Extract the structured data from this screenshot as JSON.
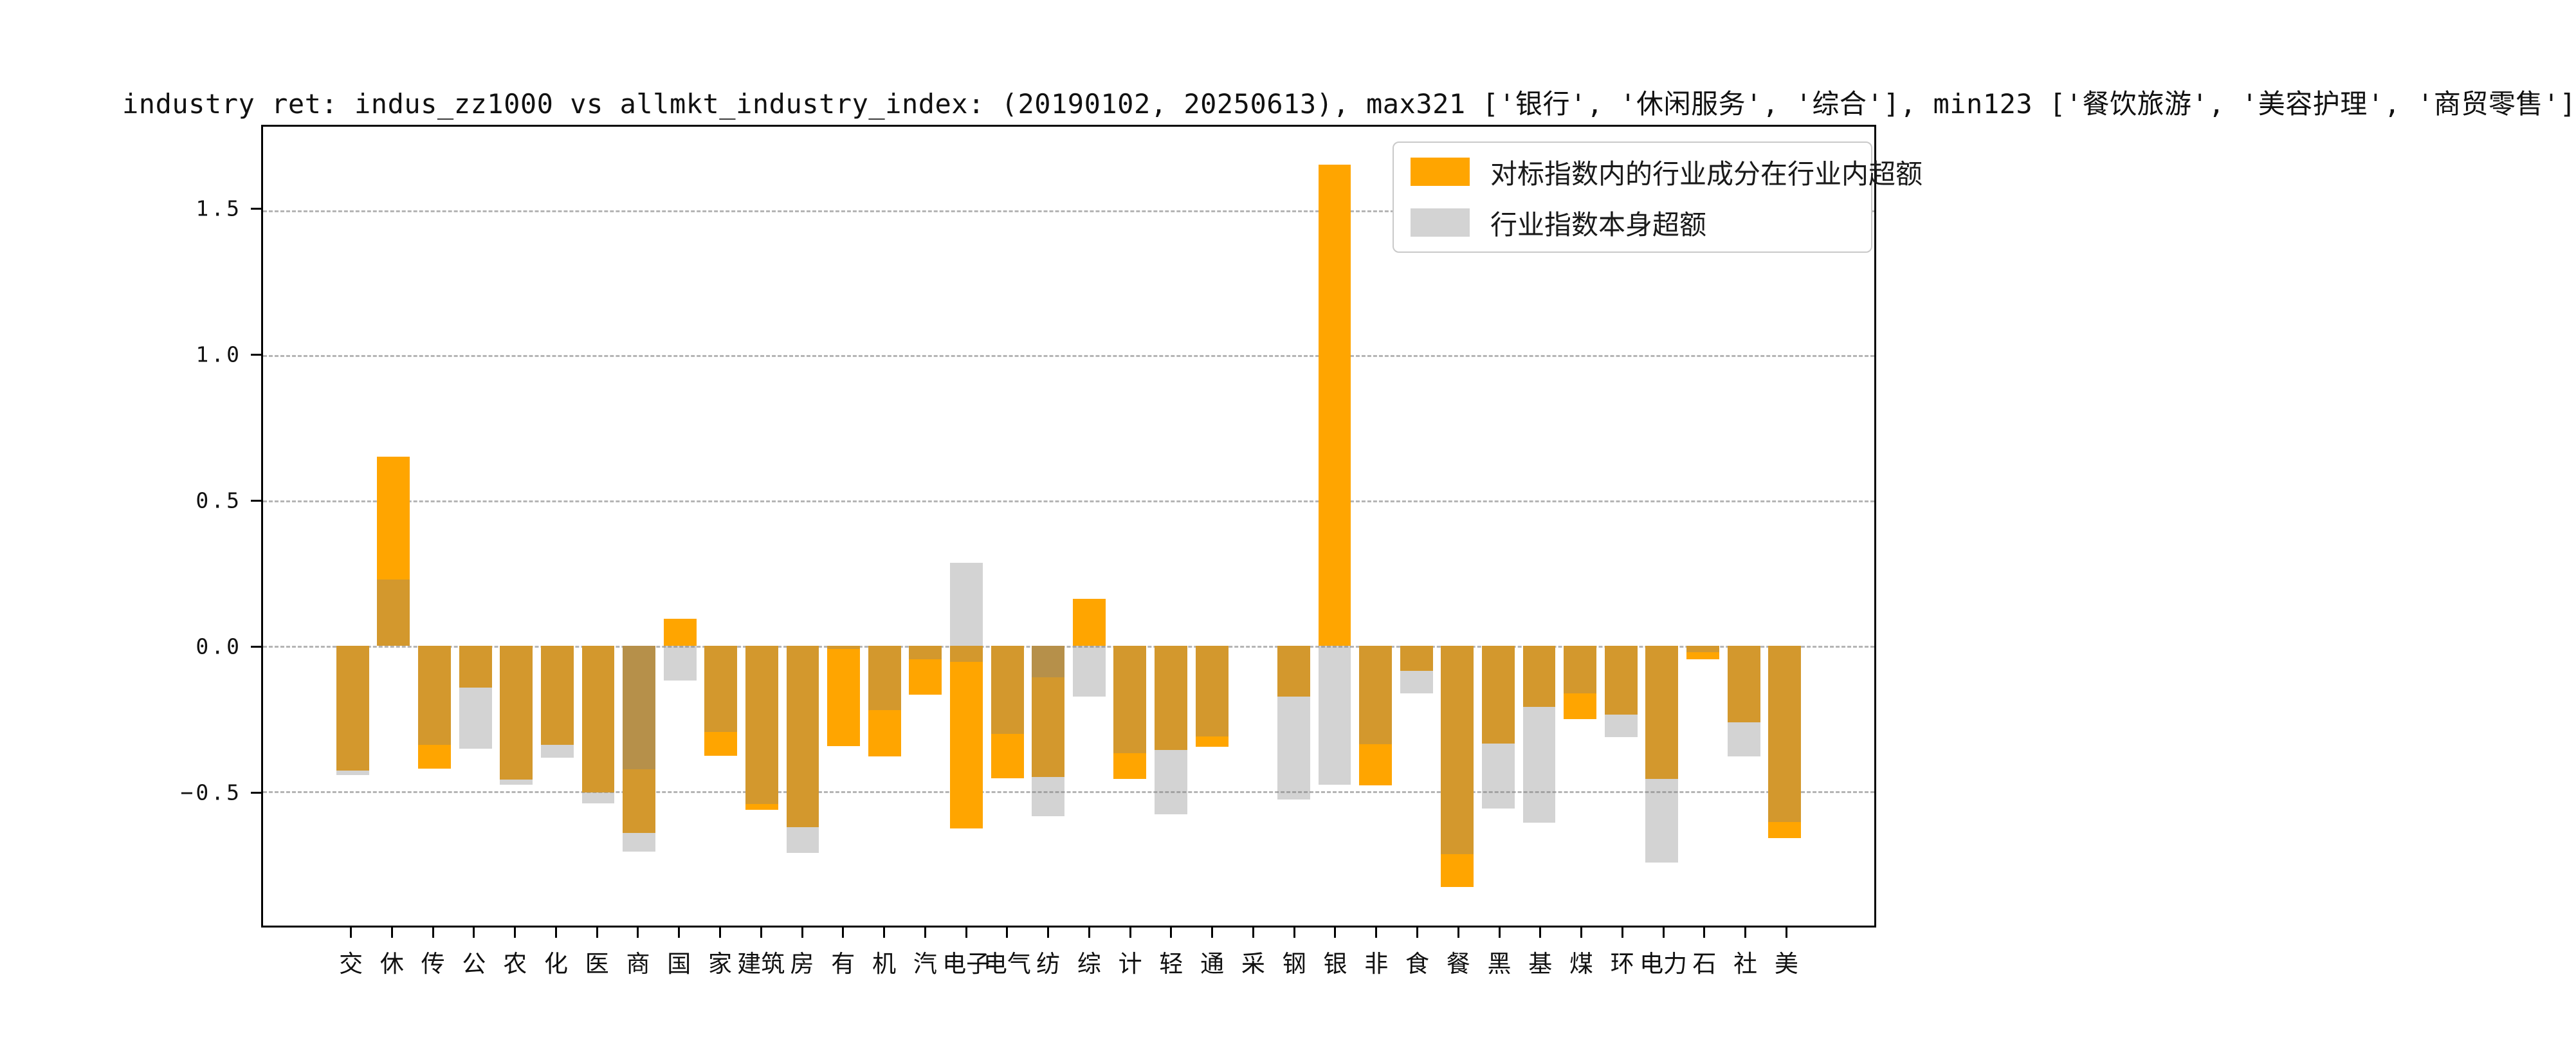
{
  "chart_data": {
    "type": "bar",
    "title": "industry ret: indus_zz1000 vs allmkt_industry_index: (20190102, 20250613), max321 ['银行', '休闲服务', '综合'], min123 ['餐饮旅游', '美容护理', '商贸零售']",
    "xlabel": "",
    "ylabel": "",
    "ylim": [
      -0.964,
      1.787
    ],
    "grid": "dashed horizontal",
    "legend_position": "upper right",
    "y_ticks": [
      "1.5",
      "1.0",
      "0.5",
      "0.0",
      "−0.5"
    ],
    "y_tick_values": [
      1.5,
      1.0,
      0.5,
      0.0,
      -0.5
    ],
    "colors": {
      "orange_series": "#FFA500",
      "gray_series_overlay": "rgba(128,128,128,0.35)",
      "gray_over_white": "#D3D3D3",
      "gray_over_orange": "#D3982D",
      "double_gray_over_orange": "#B69049",
      "gridline": "#b5b5b5"
    },
    "series_names": {
      "orange": "对标指数内的行业成分在行业内超额",
      "gray": "行业指数本身超额"
    },
    "industries": [
      {
        "label": "交",
        "orange": -0.43,
        "gray": [
          -0.445
        ]
      },
      {
        "label": "休",
        "orange": 0.65,
        "gray": [
          0.228
        ]
      },
      {
        "label": "传",
        "orange": -0.424,
        "gray": [
          -0.341
        ]
      },
      {
        "label": "公",
        "orange": -0.145,
        "gray": [
          -0.354
        ]
      },
      {
        "label": "农",
        "orange": -0.461,
        "gray": [
          -0.48
        ]
      },
      {
        "label": "化",
        "orange": -0.341,
        "gray": [
          -0.385
        ]
      },
      {
        "label": "医",
        "orange": -0.506,
        "gray": [
          -0.544
        ]
      },
      {
        "label": "商",
        "orange": -0.644,
        "gray": [
          -0.426,
          -0.71
        ]
      },
      {
        "label": "国",
        "orange": 0.092,
        "gray": [
          -0.121
        ]
      },
      {
        "label": "家",
        "orange": -0.379,
        "gray": [
          -0.297
        ]
      },
      {
        "label": "建筑",
        "orange": -0.566,
        "gray": [
          -0.546
        ]
      },
      {
        "label": "房",
        "orange": -0.625,
        "gray": [
          -0.713
        ]
      },
      {
        "label": "有",
        "orange": -0.346,
        "gray": [
          -0.012
        ]
      },
      {
        "label": "机",
        "orange": -0.382,
        "gray": [
          -0.221
        ]
      },
      {
        "label": "汽",
        "orange": -0.169,
        "gray": [
          -0.048
        ]
      },
      {
        "label": "电子",
        "orange": -0.629,
        "gray": [
          0.285,
          -0.055
        ]
      },
      {
        "label": "电气",
        "orange": -0.456,
        "gray": [
          -0.305
        ]
      },
      {
        "label": "纺",
        "orange": -0.452,
        "gray": [
          -0.11,
          -0.588
        ]
      },
      {
        "label": "综",
        "orange": 0.162,
        "gray": [
          -0.176
        ]
      },
      {
        "label": "计",
        "orange": -0.46,
        "gray": [
          -0.371
        ]
      },
      {
        "label": "轻",
        "orange": -0.36,
        "gray": [
          -0.581
        ]
      },
      {
        "label": "通",
        "orange": -0.349,
        "gray": [
          -0.313
        ]
      },
      {
        "label": "采",
        "orange": 0,
        "gray": []
      },
      {
        "label": "钢",
        "orange": -0.176,
        "gray": [
          -0.529
        ]
      },
      {
        "label": "银",
        "orange": 1.657,
        "gray": [
          -0.478
        ]
      },
      {
        "label": "非",
        "orange": -0.482,
        "gray": [
          -0.339
        ]
      },
      {
        "label": "食",
        "orange": -0.088,
        "gray": [
          -0.164
        ]
      },
      {
        "label": "餐",
        "orange": -0.832,
        "gray": [
          -0.719
        ]
      },
      {
        "label": "黑",
        "orange": -0.338,
        "gray": [
          -0.562
        ]
      },
      {
        "label": "基",
        "orange": -0.212,
        "gray": [
          -0.609
        ]
      },
      {
        "label": "煤",
        "orange": -0.252,
        "gray": [
          -0.164
        ]
      },
      {
        "label": "环",
        "orange": -0.237,
        "gray": [
          -0.314
        ]
      },
      {
        "label": "电力",
        "orange": -0.46,
        "gray": [
          -0.746
        ]
      },
      {
        "label": "石",
        "orange": -0.048,
        "gray": [
          -0.022
        ]
      },
      {
        "label": "社",
        "orange": -0.265,
        "gray": [
          -0.382
        ]
      },
      {
        "label": "美",
        "orange": -0.662,
        "gray": [
          -0.607
        ]
      }
    ]
  },
  "legend": {
    "items": [
      {
        "label": "对标指数内的行业成分在行业内超额",
        "color": "#FFA500"
      },
      {
        "label": "行业指数本身超额",
        "color": "#D3D3D3"
      }
    ]
  }
}
